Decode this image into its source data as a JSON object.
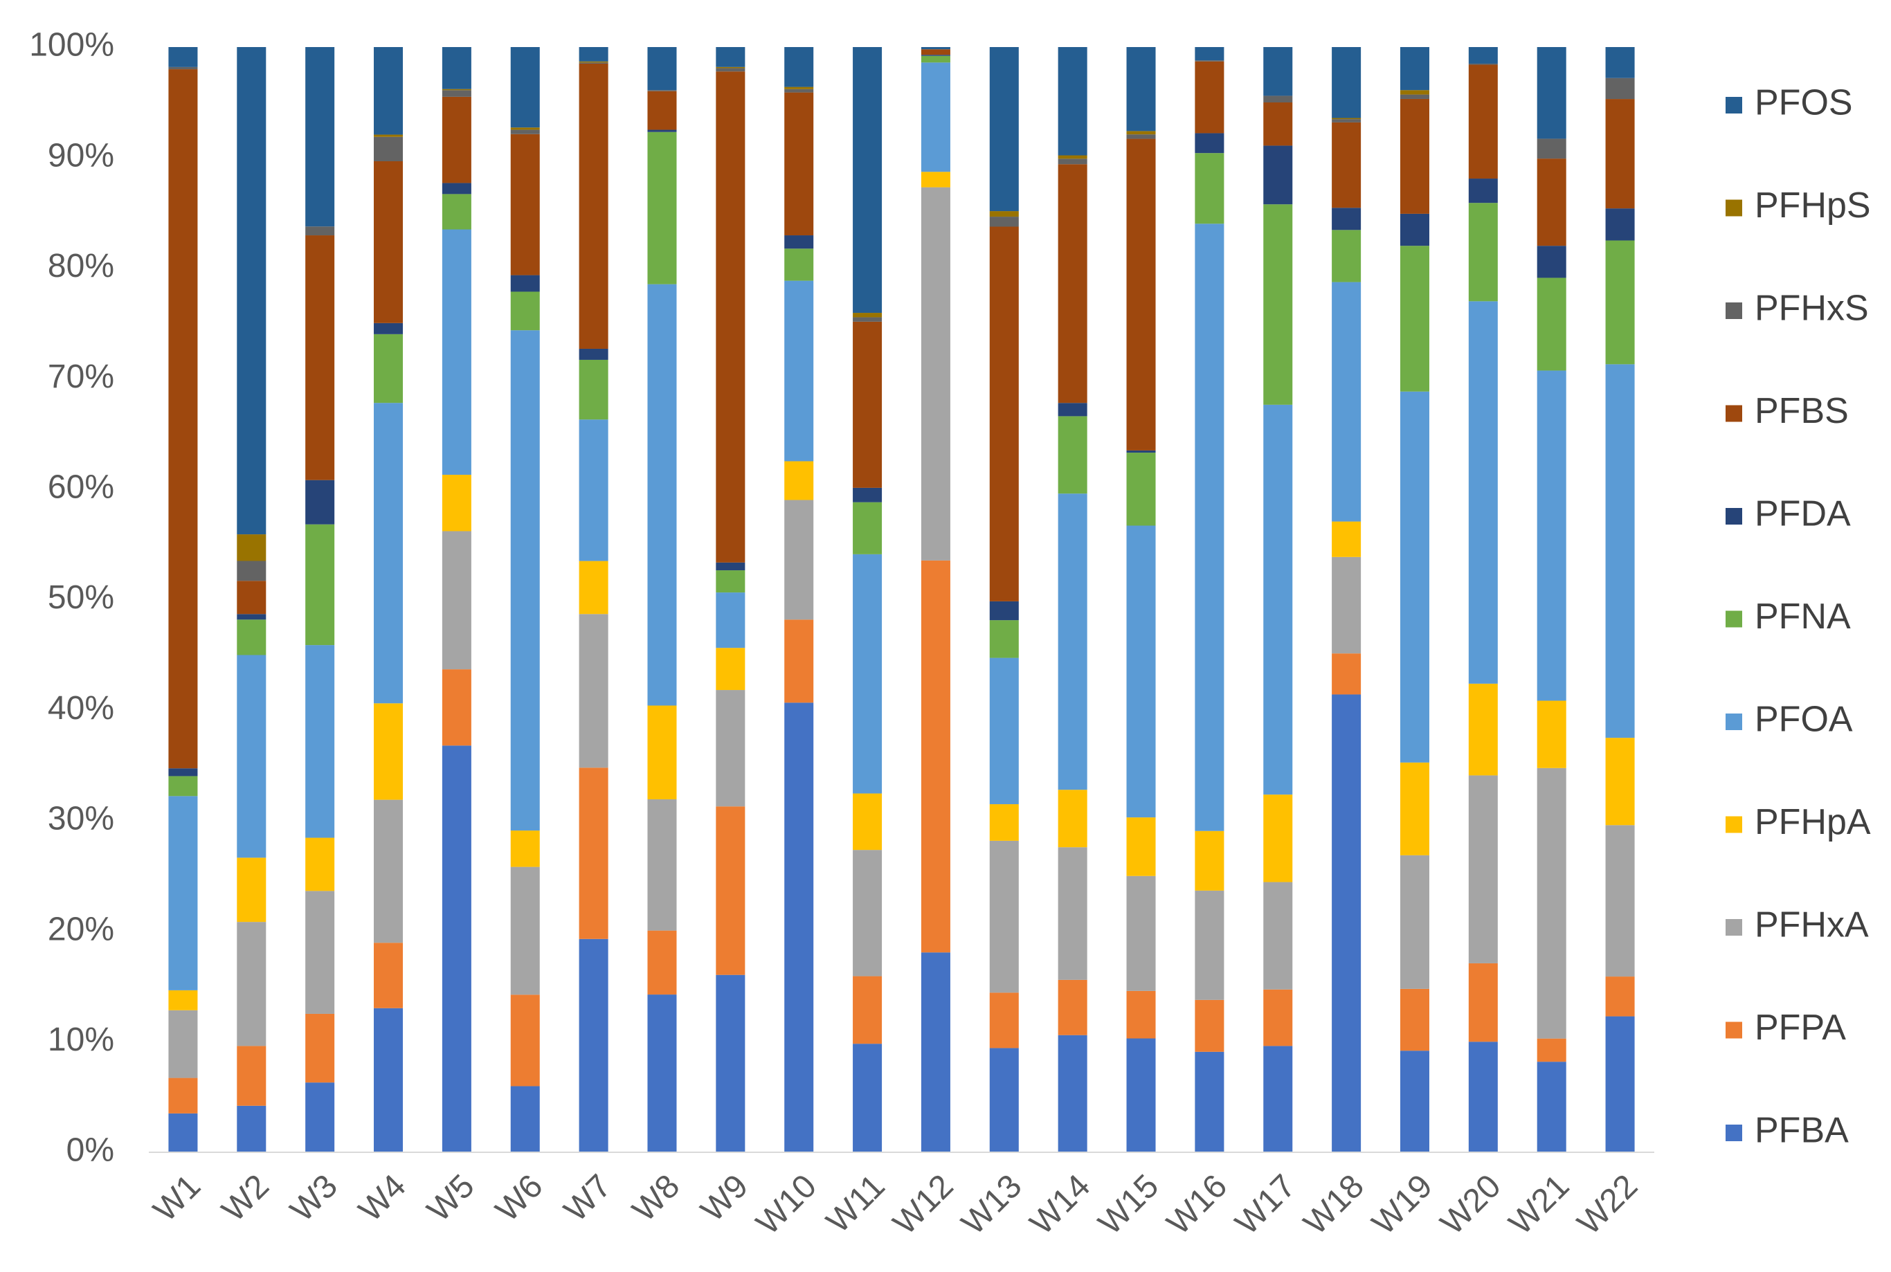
{
  "chart_data": {
    "type": "bar",
    "stacked": true,
    "percent_stacked": true,
    "title": "",
    "xlabel": "",
    "ylabel": "",
    "ylim": [
      0,
      100
    ],
    "ytick_labels": [
      "0%",
      "10%",
      "20%",
      "30%",
      "40%",
      "50%",
      "60%",
      "70%",
      "80%",
      "90%",
      "100%"
    ],
    "grid": false,
    "legend_position": "right",
    "categories": [
      "W1",
      "W2",
      "W3",
      "W4",
      "W5",
      "W6",
      "W7",
      "W8",
      "W9",
      "W10",
      "W11",
      "W12",
      "W13",
      "W14",
      "W15",
      "W16",
      "W17",
      "W18",
      "W19",
      "W20",
      "W21",
      "W22"
    ],
    "series": [
      {
        "name": "PFBA",
        "color": "#4472C4",
        "values": [
          3.5,
          4.2,
          6.3,
          13.0,
          36.8,
          6.0,
          19.3,
          14.3,
          16.0,
          40.6,
          9.8,
          18.1,
          9.4,
          10.6,
          10.3,
          9.1,
          9.6,
          41.3,
          9.2,
          10.0,
          8.2,
          12.3
        ]
      },
      {
        "name": "PFPA",
        "color": "#ED7D31",
        "values": [
          3.2,
          5.4,
          6.2,
          5.9,
          6.9,
          8.3,
          15.5,
          5.8,
          15.2,
          7.5,
          6.1,
          35.5,
          5.0,
          5.0,
          4.3,
          4.7,
          5.1,
          3.7,
          5.6,
          7.1,
          2.1,
          3.6
        ]
      },
      {
        "name": "PFHxA",
        "color": "#A5A5A5",
        "values": [
          6.1,
          11.2,
          11.1,
          12.9,
          12.5,
          11.6,
          13.9,
          11.9,
          10.5,
          10.8,
          11.4,
          33.8,
          13.7,
          12.0,
          10.4,
          9.9,
          9.7,
          8.7,
          12.1,
          17.0,
          24.5,
          13.7
        ]
      },
      {
        "name": "PFHpA",
        "color": "#FFC000",
        "values": [
          1.8,
          5.8,
          4.8,
          8.7,
          5.1,
          3.3,
          4.8,
          8.5,
          3.8,
          3.5,
          5.1,
          1.4,
          3.3,
          5.2,
          5.3,
          5.4,
          7.9,
          3.2,
          8.4,
          8.3,
          6.1,
          7.9
        ]
      },
      {
        "name": "PFOA",
        "color": "#5B9BD5",
        "values": [
          17.5,
          18.3,
          17.4,
          27.1,
          22.2,
          45.4,
          12.8,
          38.2,
          5.0,
          16.3,
          21.6,
          9.9,
          13.2,
          26.8,
          26.4,
          55.0,
          35.2,
          21.6,
          33.6,
          34.6,
          29.9,
          33.8
        ]
      },
      {
        "name": "PFNA",
        "color": "#70AD47",
        "values": [
          1.8,
          3.2,
          10.9,
          6.2,
          3.2,
          3.5,
          5.4,
          13.8,
          2.0,
          2.9,
          4.7,
          0.6,
          3.4,
          7.0,
          6.6,
          6.4,
          18.1,
          4.7,
          13.2,
          8.9,
          8.4,
          11.2
        ]
      },
      {
        "name": "PFDA",
        "color": "#264478",
        "values": [
          0.7,
          0.5,
          4.0,
          1.0,
          1.0,
          1.5,
          1.0,
          0.2,
          0.7,
          1.2,
          1.3,
          0.1,
          1.7,
          1.2,
          0.2,
          1.8,
          5.3,
          2.0,
          2.9,
          2.2,
          2.9,
          2.9
        ]
      },
      {
        "name": "PFBS",
        "color": "#9E480E",
        "values": [
          63.0,
          3.0,
          22.1,
          14.6,
          7.8,
          12.8,
          25.8,
          3.5,
          44.3,
          12.9,
          15.0,
          0.5,
          33.8,
          21.6,
          28.2,
          6.5,
          3.9,
          7.7,
          10.4,
          10.3,
          7.9,
          9.9
        ]
      },
      {
        "name": "PFHxS",
        "color": "#636363",
        "values": [
          0.2,
          1.8,
          0.8,
          2.2,
          0.6,
          0.4,
          0.1,
          0.1,
          0.3,
          0.3,
          0.4,
          0.0,
          0.9,
          0.5,
          0.4,
          0.1,
          0.6,
          0.3,
          0.4,
          0.1,
          1.8,
          1.9
        ]
      },
      {
        "name": "PFHpS",
        "color": "#997300",
        "values": [
          0.0,
          2.4,
          0.0,
          0.2,
          0.1,
          0.2,
          0.1,
          0.0,
          0.1,
          0.2,
          0.4,
          0.0,
          0.5,
          0.3,
          0.3,
          0.0,
          0.0,
          0.1,
          0.4,
          0.0,
          0.0,
          0.0
        ]
      },
      {
        "name": "PFOS",
        "color": "#255E91",
        "values": [
          1.8,
          44.0,
          16.2,
          7.9,
          3.8,
          7.3,
          1.3,
          3.9,
          1.8,
          3.6,
          24.0,
          0.2,
          14.8,
          9.8,
          7.6,
          1.2,
          4.4,
          6.4,
          3.9,
          1.5,
          8.3,
          2.8
        ]
      }
    ]
  }
}
